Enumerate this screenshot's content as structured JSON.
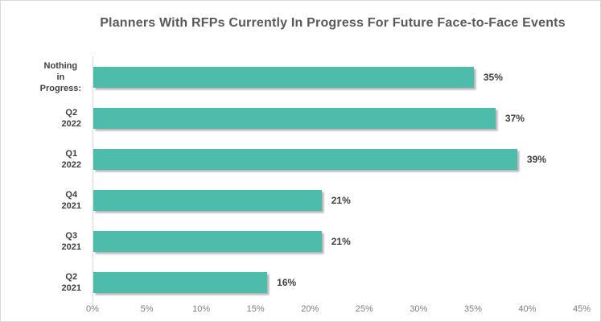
{
  "chart_data": {
    "type": "bar",
    "orientation": "horizontal",
    "title": "Planners With RFPs Currently In Progress For Future Face-to-Face Events",
    "categories": [
      "Nothing in Progress:",
      "Q2 2022",
      "Q1 2022",
      "Q4 2021",
      "Q3 2021",
      "Q2 2021"
    ],
    "values": [
      35,
      37,
      39,
      21,
      21,
      16
    ],
    "value_labels": [
      "35%",
      "37%",
      "39%",
      "21%",
      "21%",
      "16%"
    ],
    "x_ticks": [
      "0%",
      "5%",
      "10%",
      "15%",
      "20%",
      "25%",
      "30%",
      "35%",
      "40%",
      "45%"
    ],
    "xlim": [
      0,
      45
    ],
    "grid": false,
    "legend": false,
    "xlabel": "",
    "ylabel": "",
    "colors": {
      "bar_fill": "#4dbcab",
      "title_text": "#595959",
      "label_text": "#3f3f3f",
      "tick_text": "#7f7f7f",
      "axis_line": "#d9d9d9",
      "background": "#ffffff",
      "border": "#d9d9d9"
    }
  }
}
